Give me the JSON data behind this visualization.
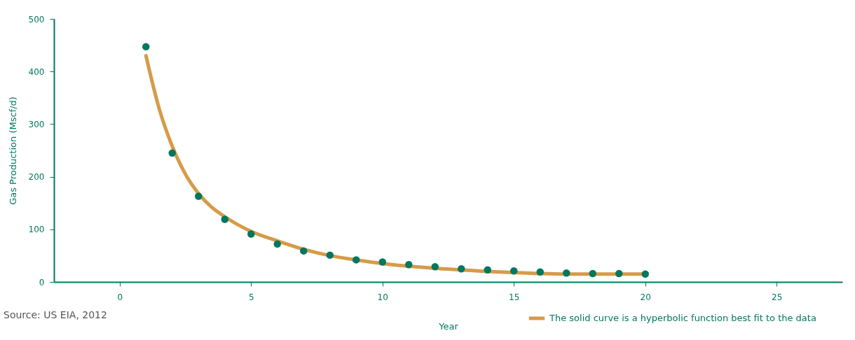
{
  "chart_data": {
    "type": "scatter",
    "xlabel": "Year",
    "ylabel": "Gas Production (Mscf/d)",
    "annotations": [
      "Source: US EIA, 2012"
    ],
    "x": [
      1,
      2,
      3,
      4,
      5,
      6,
      7,
      8,
      9,
      10,
      11,
      12,
      13,
      14,
      15,
      16,
      17,
      18,
      19,
      20
    ],
    "series": [
      {
        "color": "#00775f",
        "marker": "circle",
        "values": [
          447,
          245,
          163,
          119,
          91,
          72,
          59,
          51,
          42,
          38,
          33,
          29,
          25,
          23,
          21,
          19,
          17,
          16,
          16,
          15
        ]
      },
      {
        "type": "line",
        "name": "The solid curve is a hyperbolic function best fit to the data",
        "color": "#d69b48",
        "marker": "none",
        "line_style": "solid",
        "x": [
          1,
          1.5,
          2,
          2.5,
          3,
          3.5,
          4,
          5,
          6,
          7,
          8,
          9,
          10,
          11,
          12,
          13,
          14,
          15,
          16,
          17,
          18,
          19,
          20
        ],
        "values": [
          430,
          330,
          258,
          205,
          168,
          142,
          124,
          96,
          78,
          62,
          50,
          42,
          35,
          30,
          26,
          23,
          20,
          18,
          16,
          15,
          15,
          15,
          15
        ]
      }
    ],
    "xlim": [
      -2.5,
      27.5
    ],
    "xticks": [
      0,
      5,
      10,
      15,
      20,
      25
    ],
    "ylim": [
      0,
      500
    ],
    "yticks": [
      0,
      100,
      200,
      300,
      400,
      500
    ],
    "grid": false,
    "legend": "bottom right"
  }
}
